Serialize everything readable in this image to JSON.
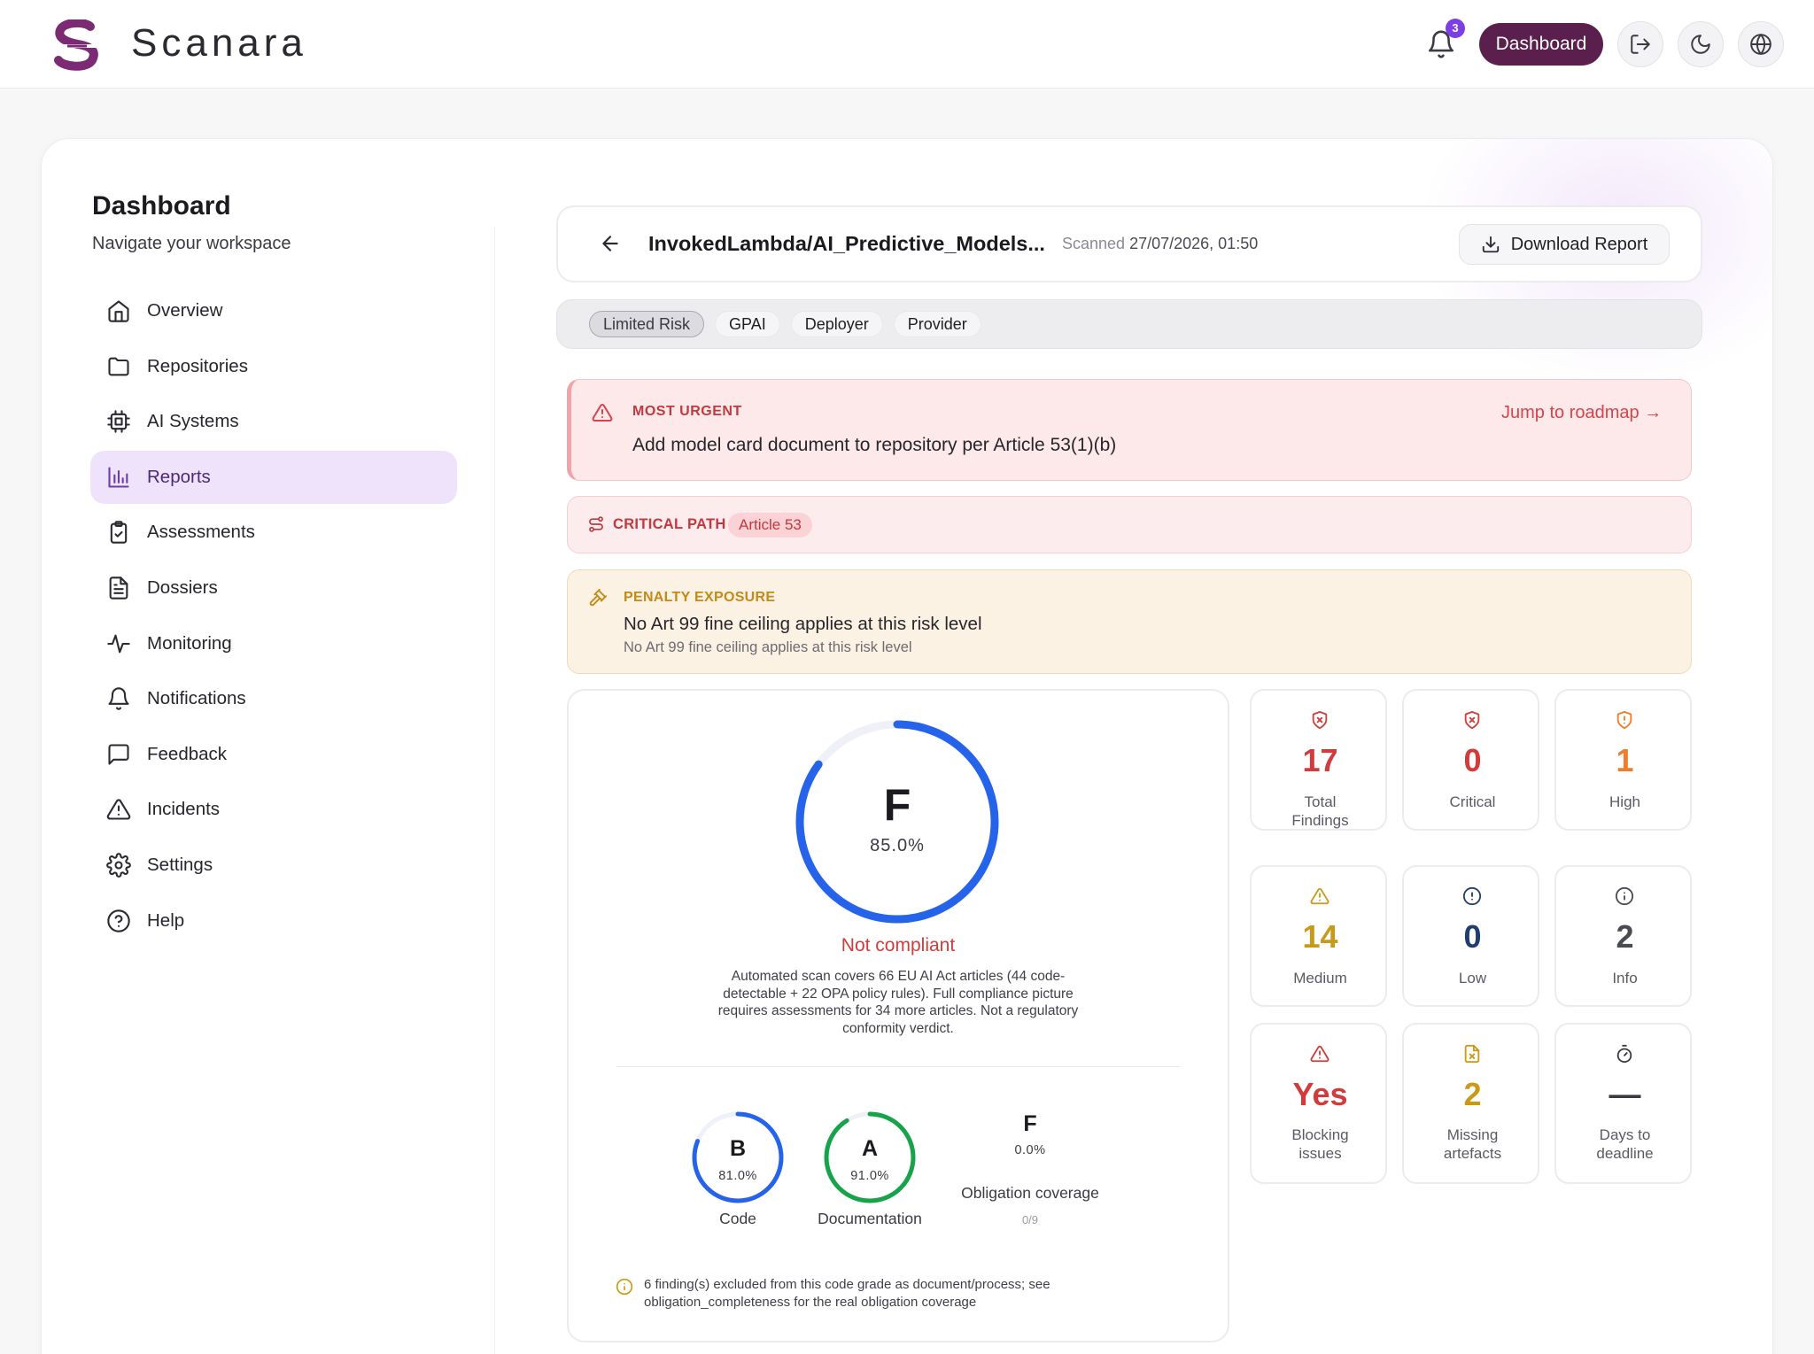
{
  "app": {
    "brand": "Scanara",
    "notification_count": "3",
    "dashboard_button": "Dashboard"
  },
  "sidebar": {
    "title": "Dashboard",
    "subtitle": "Navigate your workspace",
    "items": [
      {
        "label": "Overview",
        "icon": "home-icon"
      },
      {
        "label": "Repositories",
        "icon": "folder-icon"
      },
      {
        "label": "AI Systems",
        "icon": "chip-icon"
      },
      {
        "label": "Reports",
        "icon": "bar-chart-icon",
        "active": true
      },
      {
        "label": "Assessments",
        "icon": "clipboard-check-icon"
      },
      {
        "label": "Dossiers",
        "icon": "document-icon"
      },
      {
        "label": "Monitoring",
        "icon": "activity-icon"
      },
      {
        "label": "Notifications",
        "icon": "bell-icon"
      },
      {
        "label": "Feedback",
        "icon": "message-icon"
      },
      {
        "label": "Incidents",
        "icon": "warning-icon"
      },
      {
        "label": "Settings",
        "icon": "gear-icon"
      },
      {
        "label": "Help",
        "icon": "help-icon"
      }
    ]
  },
  "report": {
    "file_name": "InvokedLambda/AI_Predictive_Models...",
    "scanned_label": "Scanned",
    "scanned_at": "27/07/2026, 01:50",
    "download_label": "Download Report",
    "tags": [
      "Limited Risk",
      "GPAI",
      "Deployer",
      "Provider"
    ]
  },
  "urgent": {
    "label": "MOST URGENT",
    "text": "Add model card document to repository per Article 53(1)(b)",
    "jump_label": "Jump to roadmap →"
  },
  "critical_path": {
    "label": "CRITICAL PATH",
    "chip": "Article 53"
  },
  "penalty": {
    "label": "PENALTY EXPOSURE",
    "text": "No Art 99 fine ceiling applies at this risk level",
    "subtext": "No Art 99 fine ceiling applies at this risk level"
  },
  "score": {
    "grade": "F",
    "percent": "85.0%",
    "percent_value": 85.0,
    "status": "Not compliant",
    "scope_text": "Automated scan covers 66 EU AI Act articles (44 code-detectable + 22 OPA policy rules). Full compliance picture requires assessments for 34 more articles. Not a regulatory conformity verdict.",
    "code": {
      "grade": "B",
      "percent": "81.0%",
      "percent_value": 81.0,
      "label": "Code"
    },
    "documentation": {
      "grade": "A",
      "percent": "91.0%",
      "percent_value": 91.0,
      "label": "Documentation"
    },
    "obligation": {
      "grade": "F",
      "percent": "0.0%",
      "label": "Obligation coverage",
      "count": "0/9"
    },
    "note": "6 finding(s) excluded from this code grade as document/process; see obligation_completeness for the real obligation coverage"
  },
  "stats": [
    {
      "value": "17",
      "label": "Total Findings",
      "icon": "shield-x-icon",
      "color": "#d33b3b"
    },
    {
      "value": "0",
      "label": "Critical",
      "icon": "shield-x-icon",
      "color": "#d33b3b"
    },
    {
      "value": "1",
      "label": "High",
      "icon": "shield-alert-icon",
      "color": "#ef7d2a"
    },
    {
      "value": "14",
      "label": "Medium",
      "icon": "warning-icon",
      "color": "#c99a1a"
    },
    {
      "value": "0",
      "label": "Low",
      "icon": "alert-circle-icon",
      "color": "#1f3d6e"
    },
    {
      "value": "2",
      "label": "Info",
      "icon": "info-icon",
      "color": "#4a4a52"
    },
    {
      "value": "Yes",
      "label": "Blocking issues",
      "icon": "warning-icon",
      "color": "#d33b3b"
    },
    {
      "value": "2",
      "label": "Missing artefacts",
      "icon": "file-x-icon",
      "color": "#c99a1a"
    },
    {
      "value": "—",
      "label": "Days to deadline",
      "icon": "timer-icon",
      "color": "#3a3a42"
    }
  ],
  "colors": {
    "brand": "#5a1f4d",
    "accent": "#7b3fe4",
    "ring_blue": "#2563eb",
    "ring_green": "#16a34a",
    "danger": "#d33b3b"
  }
}
